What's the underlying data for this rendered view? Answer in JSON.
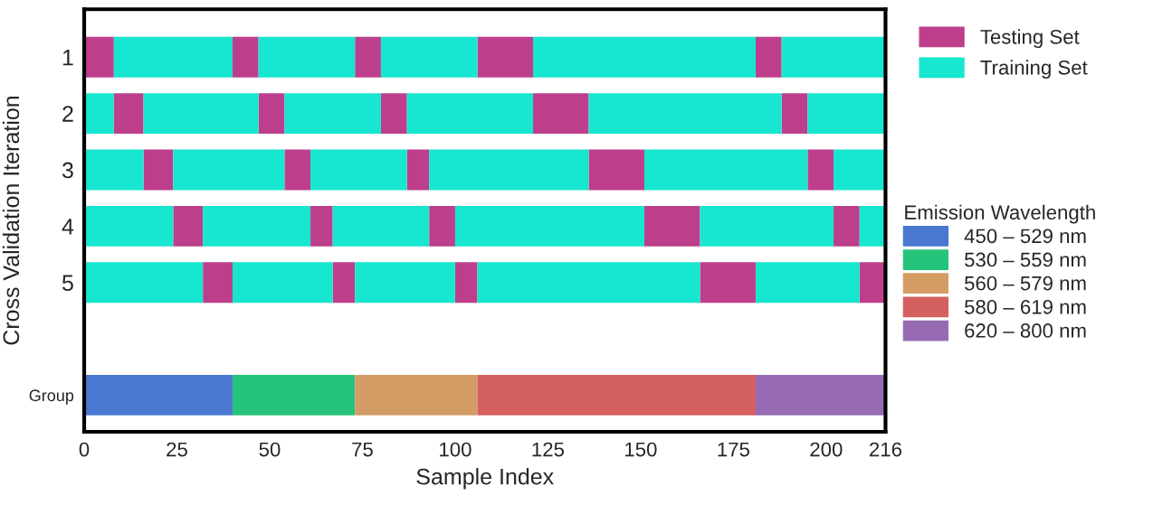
{
  "chart_data": {
    "type": "bar",
    "orientation": "horizontal",
    "xlabel": "Sample Index",
    "ylabel": "Cross Validation Iteration",
    "legend_title": "Emission Wavelength",
    "legend": "right",
    "grid": false,
    "categories": [
      "1",
      "2",
      "3",
      "4",
      "5",
      null,
      "Group"
    ],
    "xlim": [
      0,
      216
    ],
    "xticks": [
      0,
      25,
      50,
      75,
      100,
      125,
      150,
      175,
      200,
      216
    ],
    "series": [
      {
        "name": "Testing Set",
        "color": "#bd3f8b",
        "base": [
          0,
          8,
          16,
          24,
          32,
          null,
          null
        ],
        "values": [
          8,
          8,
          8,
          8,
          8,
          null,
          null
        ]
      },
      {
        "color": "#bd3f8b",
        "base": [
          40,
          47,
          54,
          61,
          67,
          null,
          null
        ],
        "values": [
          7,
          7,
          7,
          6,
          6,
          null,
          null
        ]
      },
      {
        "color": "#bd3f8b",
        "base": [
          73,
          80,
          87,
          93,
          100,
          null,
          null
        ],
        "values": [
          7,
          7,
          6,
          7,
          6,
          null,
          null
        ]
      },
      {
        "color": "#bd3f8b",
        "base": [
          106,
          121,
          136,
          151,
          166,
          null,
          null
        ],
        "values": [
          15,
          15,
          15,
          15,
          15,
          null,
          null
        ]
      },
      {
        "color": "#bd3f8b",
        "base": [
          181,
          188,
          195,
          202,
          209,
          null,
          null
        ],
        "values": [
          7,
          7,
          7,
          7,
          7,
          null,
          null
        ]
      },
      {
        "name": "Training Set",
        "color": "#17e6d0",
        "base": [
          null,
          0,
          0,
          0,
          0,
          null,
          null
        ],
        "values": [
          null,
          8,
          16,
          24,
          32,
          null,
          null
        ]
      },
      {
        "color": "#17e6d0",
        "base": [
          8,
          16,
          24,
          32,
          40,
          null,
          null
        ],
        "values": [
          32,
          31,
          30,
          29,
          27,
          null,
          null
        ]
      },
      {
        "color": "#17e6d0",
        "base": [
          47,
          54,
          61,
          67,
          73,
          null,
          null
        ],
        "values": [
          26,
          26,
          26,
          26,
          27,
          null,
          null
        ]
      },
      {
        "color": "#17e6d0",
        "base": [
          80,
          87,
          93,
          100,
          106,
          null,
          null
        ],
        "values": [
          26,
          34,
          43,
          51,
          60,
          null,
          null
        ]
      },
      {
        "color": "#17e6d0",
        "base": [
          121,
          136,
          151,
          166,
          181,
          null,
          null
        ],
        "values": [
          60,
          52,
          44,
          36,
          28,
          null,
          null
        ]
      },
      {
        "color": "#17e6d0",
        "base": [
          188,
          195,
          202,
          209,
          null,
          null,
          null
        ],
        "values": [
          28,
          21,
          14,
          7,
          null,
          null,
          null
        ]
      },
      {
        "name": "450 – 529 nm",
        "color": "#4a78d0",
        "base": [
          null,
          null,
          null,
          null,
          null,
          null,
          0
        ],
        "values": [
          null,
          null,
          null,
          null,
          null,
          null,
          40
        ]
      },
      {
        "name": "530 – 559 nm",
        "color": "#26c47a",
        "base": [
          null,
          null,
          null,
          null,
          null,
          null,
          40
        ],
        "values": [
          null,
          null,
          null,
          null,
          null,
          null,
          33
        ]
      },
      {
        "name": "560 – 579 nm",
        "color": "#d49d66",
        "base": [
          null,
          null,
          null,
          null,
          null,
          null,
          73
        ],
        "values": [
          null,
          null,
          null,
          null,
          null,
          null,
          33
        ]
      },
      {
        "name": "580 – 619 nm",
        "color": "#d56060",
        "base": [
          null,
          null,
          null,
          null,
          null,
          null,
          106
        ],
        "values": [
          null,
          null,
          null,
          null,
          null,
          null,
          75
        ]
      },
      {
        "name": "620 – 800 nm",
        "color": "#966bb4",
        "base": [
          null,
          null,
          null,
          null,
          null,
          null,
          181
        ],
        "values": [
          null,
          null,
          null,
          null,
          null,
          null,
          35
        ]
      }
    ]
  }
}
